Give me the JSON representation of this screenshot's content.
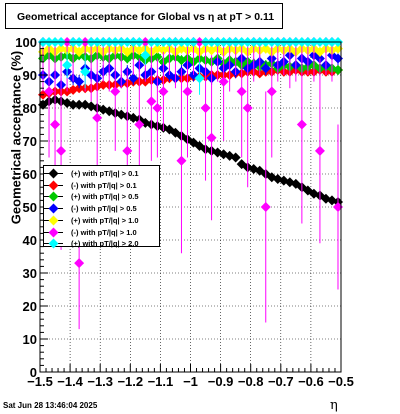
{
  "title": "Geometrical acceptance for Global vs   η  at pT > 0.11",
  "timestamp": "Sat Jun 28 13:46:04 2025",
  "chart_data": {
    "type": "scatter",
    "xlabel": "η",
    "ylabel": "Geometrical acceptance (%)",
    "xlim": [
      -1.5,
      -0.5
    ],
    "ylim": [
      0,
      100
    ],
    "x_ticks": [
      "−1.5",
      "−1.4",
      "−1.3",
      "−1.2",
      "−1.1",
      "−1",
      "−0.9",
      "−0.8",
      "−0.7",
      "−0.6",
      "−0.5"
    ],
    "y_ticks": [
      "0",
      "10",
      "20",
      "30",
      "40",
      "50",
      "60",
      "70",
      "80",
      "90",
      "100"
    ],
    "grid": true,
    "legend_position": "middle-left",
    "series": [
      {
        "name": "(+) with pT/|q| > 0.1",
        "color": "#000000",
        "x": [
          -1.49,
          -1.47,
          -1.45,
          -1.43,
          -1.41,
          -1.39,
          -1.37,
          -1.35,
          -1.33,
          -1.31,
          -1.29,
          -1.27,
          -1.25,
          -1.23,
          -1.21,
          -1.19,
          -1.17,
          -1.15,
          -1.13,
          -1.11,
          -1.09,
          -1.07,
          -1.05,
          -1.03,
          -1.01,
          -0.99,
          -0.97,
          -0.95,
          -0.93,
          -0.91,
          -0.89,
          -0.87,
          -0.85,
          -0.83,
          -0.81,
          -0.79,
          -0.77,
          -0.75,
          -0.73,
          -0.71,
          -0.69,
          -0.67,
          -0.65,
          -0.63,
          -0.61,
          -0.59,
          -0.57,
          -0.55,
          -0.53,
          -0.51
        ],
        "y": [
          81,
          82,
          82.5,
          82,
          81.5,
          81,
          81,
          81,
          80.5,
          80,
          79.5,
          79,
          78.5,
          78,
          77.5,
          77,
          76.5,
          75.5,
          75,
          74.5,
          74,
          73.5,
          72.5,
          71.5,
          70.5,
          69.5,
          68.5,
          67.5,
          67,
          66.5,
          66,
          65.5,
          65,
          63,
          62,
          61.5,
          61,
          60,
          59,
          58.5,
          58,
          57.5,
          57,
          56,
          55,
          54,
          53.5,
          52.5,
          52,
          51.5
        ],
        "err": [
          1,
          1,
          1,
          1,
          1,
          1,
          1,
          1,
          1,
          1,
          1,
          1,
          1,
          1,
          1,
          1,
          1,
          1,
          1,
          1,
          1,
          1,
          1,
          1,
          1,
          1,
          1,
          1,
          1,
          1,
          1,
          1,
          1,
          1,
          1,
          1,
          1,
          1,
          1,
          1,
          1,
          1,
          1,
          1,
          1,
          1,
          1,
          1,
          1,
          1
        ]
      },
      {
        "name": "(-) with pT/|q| > 0.1",
        "color": "#ff0000",
        "x": [
          -1.49,
          -1.47,
          -1.45,
          -1.43,
          -1.41,
          -1.39,
          -1.37,
          -1.35,
          -1.33,
          -1.31,
          -1.29,
          -1.27,
          -1.25,
          -1.23,
          -1.21,
          -1.19,
          -1.17,
          -1.15,
          -1.13,
          -1.11,
          -1.09,
          -1.07,
          -1.05,
          -1.03,
          -1.01,
          -0.99,
          -0.97,
          -0.95,
          -0.93,
          -0.91,
          -0.89,
          -0.87,
          -0.85,
          -0.83,
          -0.81,
          -0.79,
          -0.77,
          -0.75,
          -0.73,
          -0.71,
          -0.69,
          -0.67,
          -0.65,
          -0.63,
          -0.61,
          -0.59,
          -0.57,
          -0.55,
          -0.53,
          -0.51
        ],
        "y": [
          84,
          84.5,
          85,
          85,
          85,
          85.5,
          86,
          86,
          86,
          86.5,
          87,
          87,
          87,
          87.5,
          87.5,
          88,
          88,
          88,
          88.5,
          88.5,
          88.5,
          89,
          89,
          89,
          89,
          89.5,
          89.5,
          89.5,
          90,
          90,
          90,
          90,
          90.5,
          90.5,
          91,
          91,
          90.5,
          91,
          91,
          91.5,
          91,
          91,
          91.5,
          91,
          91,
          91,
          91.5,
          91,
          91,
          91.5
        ],
        "err": [
          1,
          1,
          1,
          1,
          1,
          1,
          1,
          1,
          1,
          1,
          1,
          1,
          1,
          1,
          1,
          1,
          1,
          1,
          1,
          1,
          1,
          1,
          1,
          1,
          1,
          1,
          1,
          1,
          1,
          1,
          1,
          1,
          1,
          1,
          1,
          1,
          1,
          1,
          1,
          1,
          1,
          1,
          1,
          1,
          1,
          1,
          1,
          1,
          1,
          1
        ]
      },
      {
        "name": "(+) with pT/|q| > 0.5",
        "color": "#00c800",
        "x": [
          -1.49,
          -1.47,
          -1.45,
          -1.43,
          -1.41,
          -1.39,
          -1.37,
          -1.35,
          -1.33,
          -1.31,
          -1.29,
          -1.27,
          -1.25,
          -1.23,
          -1.21,
          -1.19,
          -1.17,
          -1.15,
          -1.13,
          -1.11,
          -1.09,
          -1.07,
          -1.05,
          -1.03,
          -1.01,
          -0.99,
          -0.97,
          -0.95,
          -0.93,
          -0.91,
          -0.89,
          -0.87,
          -0.85,
          -0.83,
          -0.81,
          -0.79,
          -0.77,
          -0.75,
          -0.73,
          -0.71,
          -0.69,
          -0.67,
          -0.65,
          -0.63,
          -0.61,
          -0.59,
          -0.57,
          -0.55,
          -0.53,
          -0.51
        ],
        "y": [
          95,
          96,
          95,
          95.5,
          96,
          95,
          96,
          95.5,
          95,
          96,
          95.5,
          95,
          96,
          95.5,
          95,
          96,
          95.5,
          94.5,
          95,
          95.5,
          94,
          95,
          95.5,
          94.5,
          95,
          94,
          95,
          94.5,
          94,
          95,
          93.5,
          94.5,
          94,
          93,
          94,
          93.5,
          92.5,
          93,
          93.5,
          92,
          93,
          92.5,
          93,
          92,
          92.5,
          93,
          92,
          92.5,
          92,
          91.5
        ],
        "err": [
          1.5,
          1.5,
          1.5,
          1.5,
          1.5,
          1.5,
          1.5,
          1.5,
          1.5,
          1.5,
          1.5,
          1.5,
          1.5,
          1.5,
          1.5,
          1.5,
          1.5,
          1.5,
          1.5,
          1.5,
          1.5,
          1.5,
          1.5,
          1.5,
          1.5,
          1.5,
          1.5,
          1.5,
          1.5,
          1.5,
          1.5,
          1.5,
          1.5,
          1.5,
          1.5,
          1.5,
          1.5,
          1.5,
          1.5,
          1.5,
          1.5,
          1.5,
          1.5,
          1.5,
          1.5,
          1.5,
          1.5,
          1.5,
          1.5,
          1.5
        ]
      },
      {
        "name": "(-) with pT/|q| > 0.5",
        "color": "#0000ff",
        "x": [
          -1.49,
          -1.47,
          -1.45,
          -1.43,
          -1.41,
          -1.39,
          -1.37,
          -1.35,
          -1.33,
          -1.31,
          -1.29,
          -1.27,
          -1.25,
          -1.23,
          -1.21,
          -1.19,
          -1.17,
          -1.15,
          -1.13,
          -1.11,
          -1.09,
          -1.07,
          -1.05,
          -1.03,
          -1.01,
          -0.99,
          -0.97,
          -0.95,
          -0.93,
          -0.91,
          -0.89,
          -0.87,
          -0.85,
          -0.83,
          -0.81,
          -0.79,
          -0.77,
          -0.75,
          -0.73,
          -0.71,
          -0.69,
          -0.67,
          -0.65,
          -0.63,
          -0.61,
          -0.59,
          -0.57,
          -0.55,
          -0.53,
          -0.51
        ],
        "y": [
          90,
          88,
          90,
          87,
          91,
          89,
          88,
          92,
          90,
          89,
          91,
          92,
          90,
          88,
          91,
          89,
          93,
          90,
          91,
          88,
          92,
          90,
          89,
          91,
          93,
          90,
          92,
          91,
          89,
          94,
          92,
          93,
          91,
          95,
          92,
          93,
          94,
          92,
          95,
          93,
          94,
          96,
          93,
          95,
          94,
          96,
          95,
          93,
          96,
          95
        ],
        "err": [
          2,
          2,
          2,
          2,
          2,
          2,
          2,
          2,
          2,
          2,
          2,
          2,
          2,
          2,
          2,
          2,
          2,
          2,
          2,
          2,
          2,
          2,
          2,
          2,
          2,
          2,
          2,
          2,
          2,
          2,
          2,
          2,
          2,
          2,
          2,
          2,
          2,
          2,
          2,
          2,
          2,
          2,
          2,
          2,
          2,
          2,
          2,
          2,
          2,
          2
        ]
      },
      {
        "name": "(+) with pT/|q| > 1.0",
        "color": "#ffff00",
        "x": [
          -1.49,
          -1.47,
          -1.45,
          -1.43,
          -1.41,
          -1.39,
          -1.37,
          -1.35,
          -1.33,
          -1.31,
          -1.29,
          -1.27,
          -1.25,
          -1.23,
          -1.21,
          -1.19,
          -1.17,
          -1.15,
          -1.13,
          -1.11,
          -1.09,
          -1.07,
          -1.05,
          -1.03,
          -1.01,
          -0.99,
          -0.97,
          -0.95,
          -0.93,
          -0.91,
          -0.89,
          -0.87,
          -0.85,
          -0.83,
          -0.81,
          -0.79,
          -0.77,
          -0.75,
          -0.73,
          -0.71,
          -0.69,
          -0.67,
          -0.65,
          -0.63,
          -0.61,
          -0.59,
          -0.57,
          -0.55,
          -0.53,
          -0.51
        ],
        "y": [
          97,
          98,
          97,
          98,
          97.5,
          98,
          97,
          98,
          97.5,
          98,
          97,
          98,
          97.5,
          98,
          97,
          98,
          97.5,
          98,
          97,
          98,
          97.5,
          98,
          97,
          98,
          97.5,
          98,
          97,
          98,
          97.5,
          98,
          97,
          98,
          97.5,
          98,
          97,
          98,
          97.5,
          98,
          97,
          98,
          97.5,
          98,
          97,
          98,
          97.5,
          98,
          97,
          98,
          97.5,
          98
        ],
        "err": [
          1.5,
          1.5,
          1.5,
          1.5,
          1.5,
          1.5,
          1.5,
          1.5,
          1.5,
          1.5,
          1.5,
          1.5,
          1.5,
          1.5,
          1.5,
          1.5,
          1.5,
          1.5,
          1.5,
          1.5,
          1.5,
          1.5,
          1.5,
          1.5,
          1.5,
          1.5,
          1.5,
          1.5,
          1.5,
          1.5,
          1.5,
          1.5,
          1.5,
          1.5,
          1.5,
          1.5,
          1.5,
          1.5,
          1.5,
          1.5,
          1.5,
          1.5,
          1.5,
          1.5,
          1.5,
          1.5,
          1.5,
          1.5,
          1.5,
          1.5
        ]
      },
      {
        "name": "(-) with pT/|q| > 1.0",
        "color": "#ff00ff",
        "x": [
          -1.49,
          -1.47,
          -1.45,
          -1.43,
          -1.41,
          -1.39,
          -1.37,
          -1.35,
          -1.33,
          -1.31,
          -1.29,
          -1.27,
          -1.25,
          -1.23,
          -1.21,
          -1.19,
          -1.17,
          -1.15,
          -1.13,
          -1.11,
          -1.09,
          -1.07,
          -1.05,
          -1.03,
          -1.01,
          -0.99,
          -0.97,
          -0.95,
          -0.93,
          -0.91,
          -0.89,
          -0.87,
          -0.85,
          -0.83,
          -0.81,
          -0.79,
          -0.77,
          -0.75,
          -0.73,
          -0.71,
          -0.69,
          -0.67,
          -0.65,
          -0.63,
          -0.61,
          -0.59,
          -0.57,
          -0.55,
          -0.53,
          -0.51
        ],
        "y": [
          100,
          85,
          75,
          67,
          100,
          100,
          33,
          100,
          100,
          77,
          100,
          100,
          85,
          100,
          67,
          100,
          75,
          100,
          82,
          80,
          85,
          100,
          100,
          64,
          85,
          100,
          100,
          80,
          71,
          100,
          88,
          100,
          100,
          85,
          80,
          100,
          100,
          50,
          85,
          100,
          100,
          100,
          100,
          75,
          100,
          100,
          67,
          100,
          100,
          50
        ],
        "err": [
          15,
          20,
          25,
          30,
          15,
          12,
          20,
          15,
          18,
          22,
          12,
          15,
          18,
          14,
          25,
          10,
          20,
          12,
          18,
          15,
          12,
          10,
          14,
          28,
          20,
          10,
          15,
          22,
          25,
          12,
          18,
          15,
          10,
          20,
          24,
          12,
          10,
          35,
          20,
          12,
          10,
          14,
          12,
          30,
          10,
          12,
          28,
          10,
          12,
          25
        ]
      },
      {
        "name": "(+) with pT/|q| > 2.0",
        "color": "#00ffff",
        "x": [
          -1.49,
          -1.47,
          -1.45,
          -1.43,
          -1.41,
          -1.39,
          -1.37,
          -1.35,
          -1.33,
          -1.31,
          -1.29,
          -1.27,
          -1.25,
          -1.23,
          -1.21,
          -1.19,
          -1.17,
          -1.15,
          -1.13,
          -1.11,
          -1.09,
          -1.07,
          -1.05,
          -1.03,
          -1.01,
          -0.99,
          -0.97,
          -0.95,
          -0.93,
          -0.91,
          -0.89,
          -0.87,
          -0.85,
          -0.83,
          -0.81,
          -0.79,
          -0.77,
          -0.75,
          -0.73,
          -0.71,
          -0.69,
          -0.67,
          -0.65,
          -0.63,
          -0.61,
          -0.59,
          -0.57,
          -0.55,
          -0.53,
          -0.51
        ],
        "y": [
          100,
          100,
          100,
          100,
          93,
          100,
          100,
          91,
          100,
          100,
          100,
          100,
          100,
          100,
          100,
          100,
          100,
          96,
          100,
          100,
          100,
          100,
          100,
          100,
          100,
          100,
          89,
          100,
          100,
          100,
          100,
          100,
          100,
          100,
          100,
          100,
          100,
          100,
          100,
          100,
          100,
          100,
          100,
          100,
          100,
          100,
          100,
          100,
          100,
          100
        ],
        "err": [
          1,
          1,
          1,
          1,
          4,
          1,
          1,
          5,
          1,
          1,
          1,
          1,
          1,
          1,
          1,
          1,
          1,
          3,
          1,
          1,
          1,
          1,
          1,
          1,
          1,
          1,
          5,
          1,
          1,
          1,
          1,
          1,
          1,
          1,
          1,
          1,
          1,
          1,
          1,
          1,
          1,
          1,
          1,
          1,
          1,
          1,
          1,
          1,
          1,
          1
        ]
      }
    ]
  }
}
